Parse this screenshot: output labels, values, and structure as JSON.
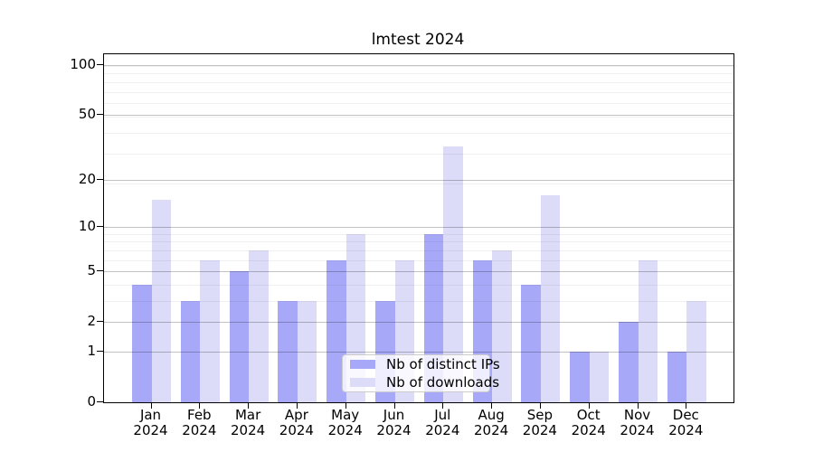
{
  "chart_data": {
    "type": "bar",
    "title": "lmtest 2024",
    "categories": [
      "Jan",
      "Feb",
      "Mar",
      "Apr",
      "May",
      "Jun",
      "Jul",
      "Aug",
      "Sep",
      "Oct",
      "Nov",
      "Dec"
    ],
    "year_label": "2024",
    "series": [
      {
        "name": "Nb of distinct IPs",
        "color": "#a8a8f8",
        "values": [
          4,
          3,
          5,
          3,
          6,
          3,
          9,
          6,
          4,
          1,
          2,
          1
        ]
      },
      {
        "name": "Nb of downloads",
        "color": "#dcdcf8",
        "values": [
          15,
          6,
          7,
          3,
          9,
          6,
          32,
          7,
          16,
          1,
          6,
          3
        ]
      }
    ],
    "xlabel": "",
    "ylabel": "",
    "y_axis": {
      "scale": "log1p",
      "tick_labels": [
        "100",
        "50",
        "20",
        "10",
        "5",
        "2",
        "1",
        "0"
      ],
      "tick_values": [
        100,
        50,
        20,
        10,
        5,
        2,
        1,
        0
      ],
      "range": [
        0,
        120
      ]
    },
    "grid": "on",
    "legend_position": "lower-center-inside"
  }
}
